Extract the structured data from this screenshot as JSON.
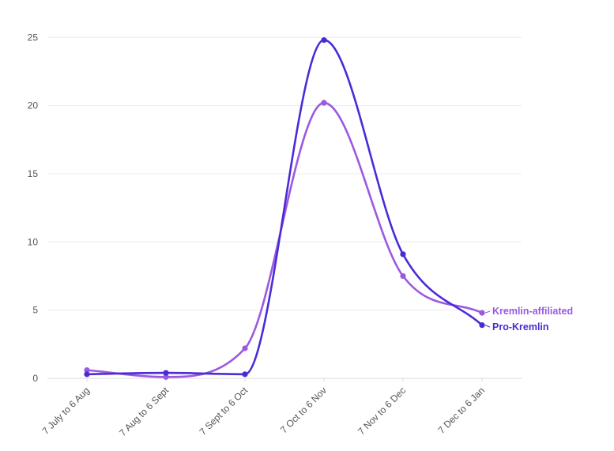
{
  "chart_data": {
    "type": "line",
    "title": "",
    "xlabel": "",
    "ylabel": "",
    "categories": [
      "7 July to 6 Aug",
      "7 Aug to 6 Sept",
      "7 Sept to 6 Oct",
      "7 Oct to 6 Nov",
      "7 Nov to 6 Dec",
      "7 Dec to 6 Jan"
    ],
    "ylim": [
      0,
      25
    ],
    "yticks": [
      0,
      5,
      10,
      15,
      20,
      25
    ],
    "grid": true,
    "legend": "inline-right",
    "series": [
      {
        "name": "Kremlin-affiliated",
        "color": "#9b59e0",
        "values": [
          0.6,
          0.1,
          2.2,
          20.2,
          7.5,
          4.8
        ]
      },
      {
        "name": "Pro-Kremlin",
        "color": "#4a2bd6",
        "values": [
          0.3,
          0.4,
          0.3,
          24.8,
          9.1,
          3.9
        ]
      }
    ]
  }
}
